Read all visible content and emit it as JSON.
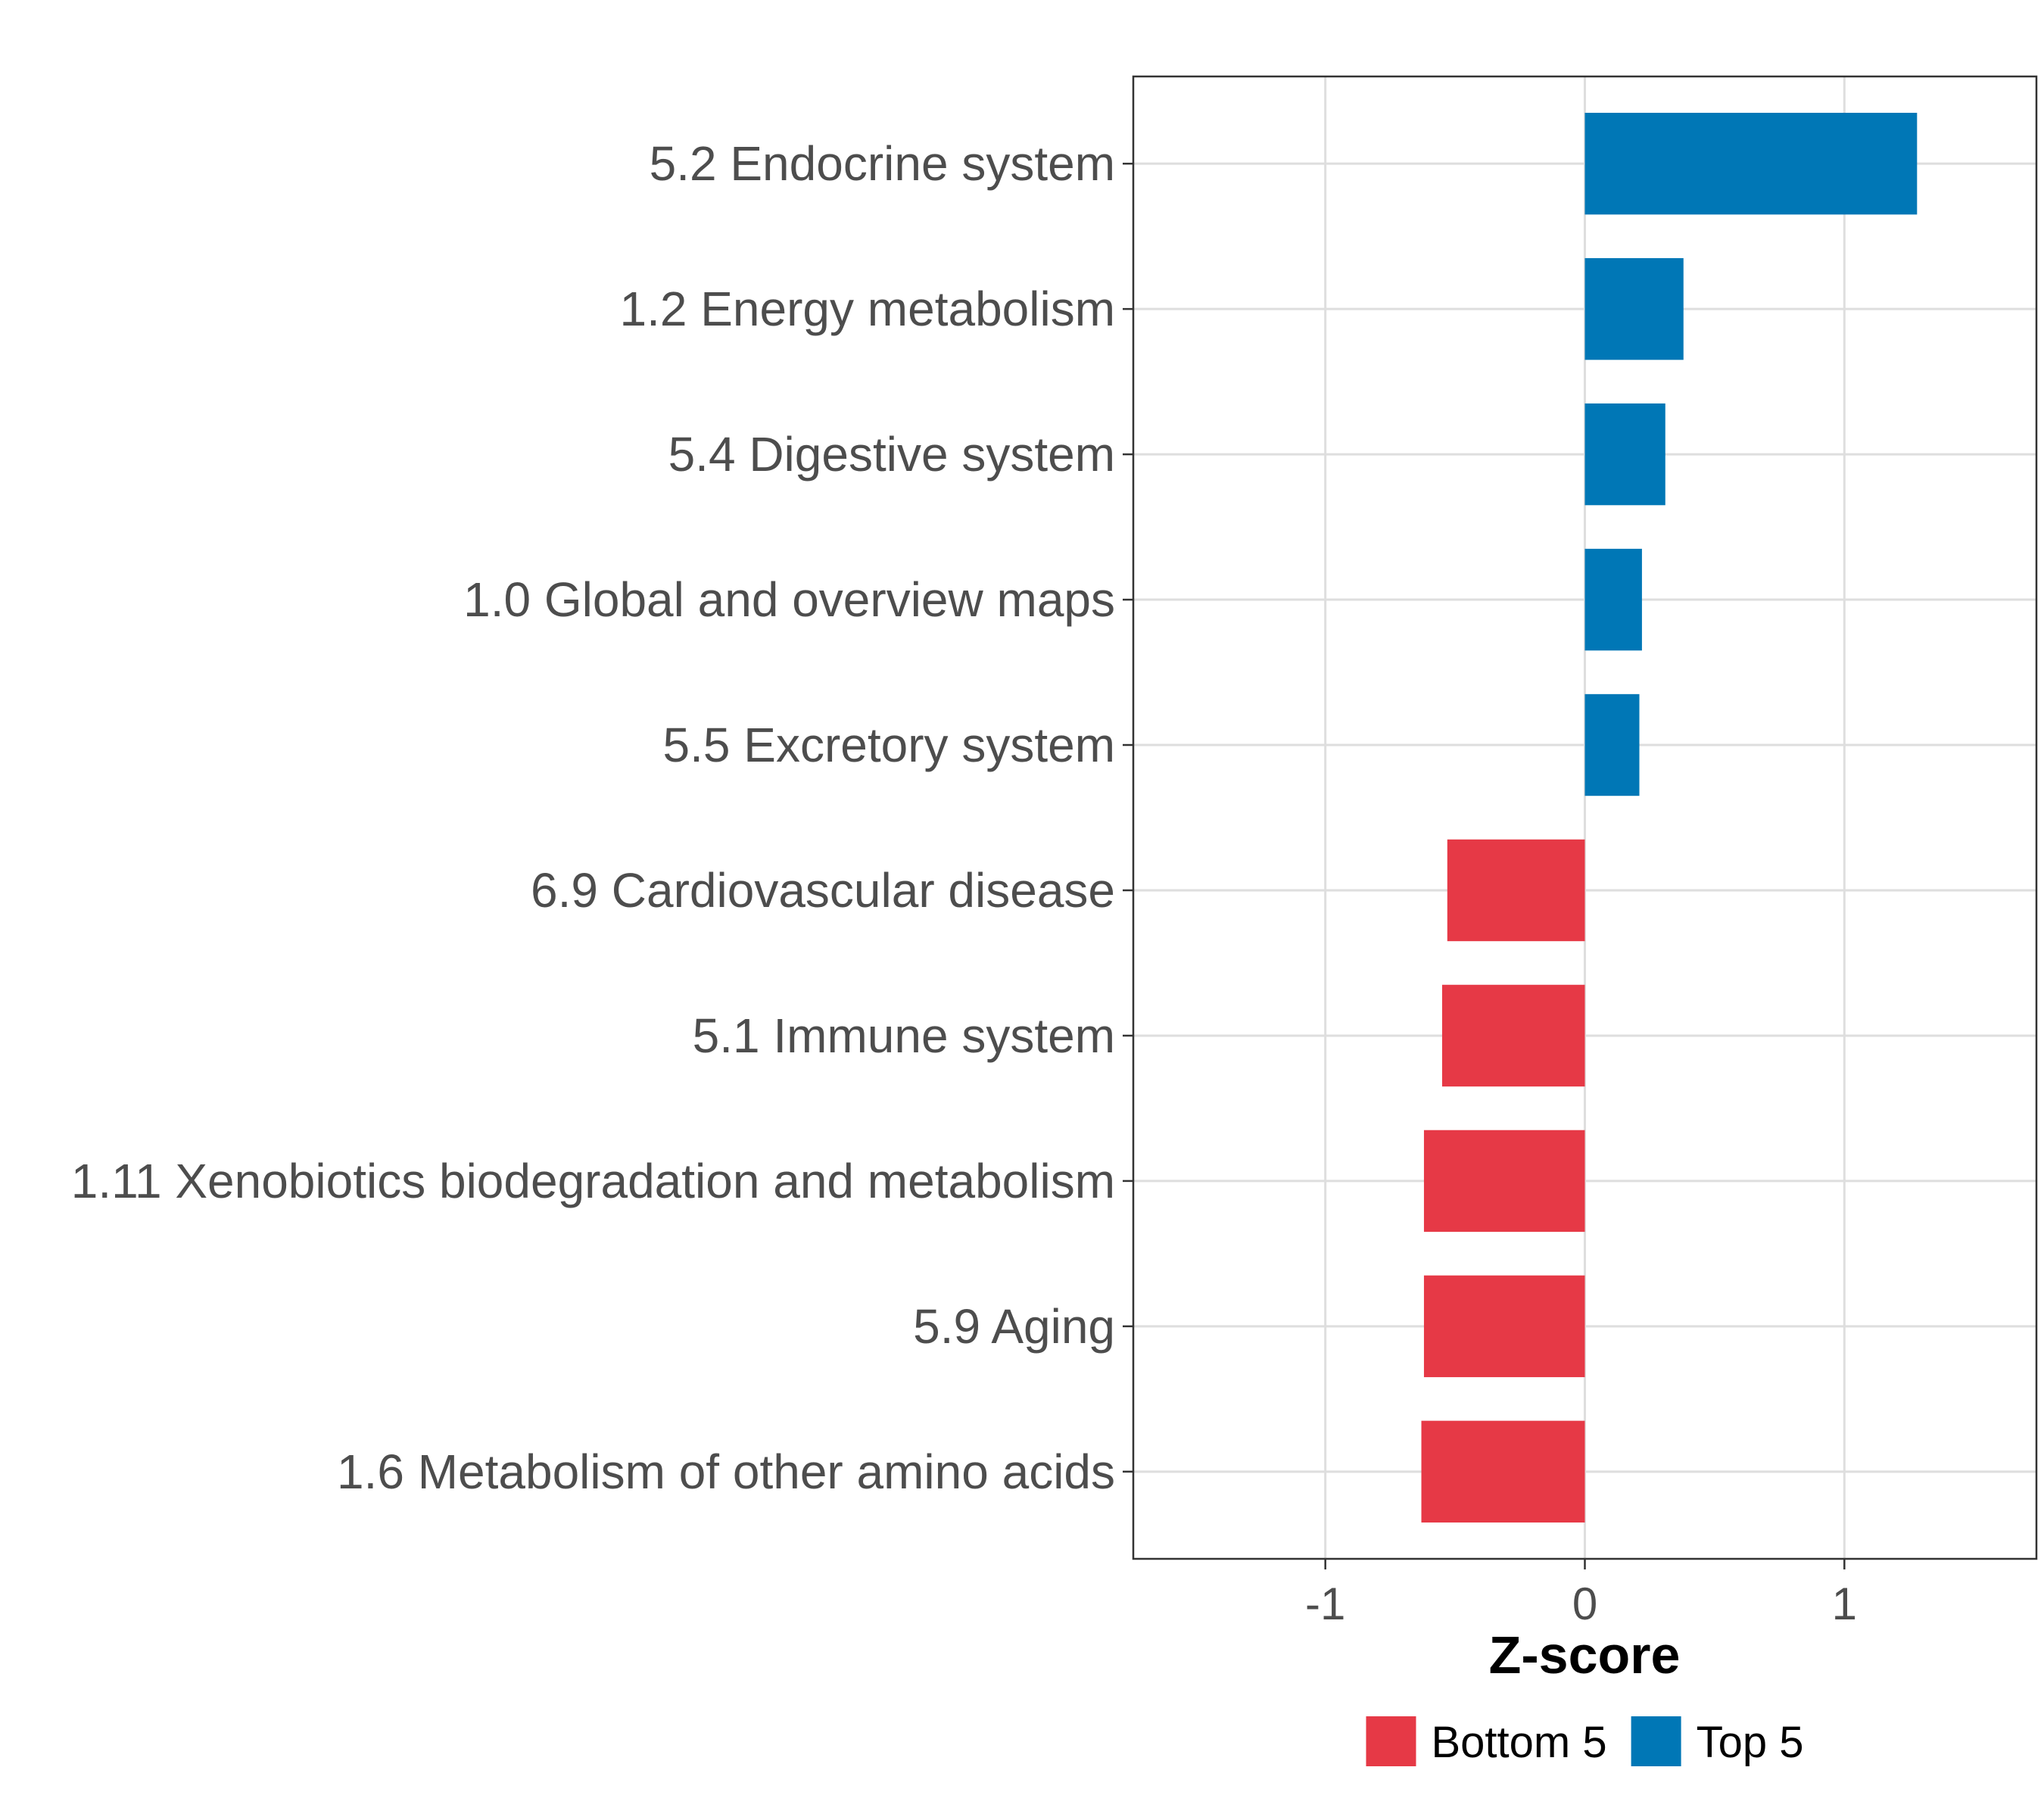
{
  "chart_data": {
    "type": "bar",
    "orientation": "horizontal",
    "title": "",
    "xlabel": "Z-score",
    "ylabel": "",
    "xlim": [
      -1.74,
      1.74
    ],
    "xticks": [
      -1,
      0,
      1
    ],
    "xtick_labels": [
      "-1",
      "0",
      "1"
    ],
    "grid": true,
    "legend_position": "bottom",
    "categories": [
      "5.2 Endocrine system",
      "1.2 Energy metabolism",
      "5.4 Digestive system",
      "1.0 Global and overview maps",
      "5.5 Excretory system",
      "6.9 Cardiovascular disease",
      "5.1 Immune system",
      "1.11 Xenobiotics biodegradation and metabolism",
      "5.9 Aging",
      "1.6 Metabolism of other amino acids"
    ],
    "values": [
      1.28,
      0.38,
      0.31,
      0.22,
      0.21,
      -0.53,
      -0.55,
      -0.62,
      -0.62,
      -0.63
    ],
    "groups": [
      "Top 5",
      "Top 5",
      "Top 5",
      "Top 5",
      "Top 5",
      "Bottom 5",
      "Bottom 5",
      "Bottom 5",
      "Bottom 5",
      "Bottom 5"
    ],
    "legend": [
      {
        "name": "Bottom 5",
        "color": "#E63946"
      },
      {
        "name": "Top 5",
        "color": "#0077B6"
      }
    ]
  }
}
